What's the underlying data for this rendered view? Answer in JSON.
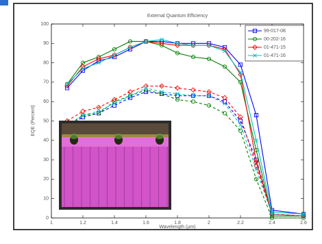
{
  "chart_data": {
    "type": "line",
    "title": "External Quantum Efficiency",
    "x_label": "Wavelength (µm)",
    "y_label": "EQE (Percent)",
    "x": [
      1.1,
      1.2,
      1.3,
      1.4,
      1.5,
      1.6,
      1.7,
      1.8,
      1.9,
      2.0,
      2.1,
      2.2,
      2.3,
      2.4,
      2.6
    ],
    "xlim": [
      1,
      2.6
    ],
    "xticks": [
      1,
      1.2,
      1.4,
      1.6,
      1.8,
      2,
      2.2,
      2.4,
      2.6
    ],
    "ylim": [
      0,
      100
    ],
    "yticks": [
      0,
      10,
      20,
      30,
      40,
      50,
      60,
      70,
      80,
      90,
      100
    ],
    "legend": "upper right",
    "series": [
      {
        "name": "99-017-08",
        "color": "#0000ff",
        "marker": "square",
        "values": [
          67,
          76,
          81,
          83,
          87,
          91,
          91,
          90,
          90,
          90,
          88,
          79,
          53,
          4,
          2
        ],
        "dashed_values": [
          47,
          52,
          54,
          58,
          62,
          65,
          64,
          63,
          63,
          63,
          60,
          50,
          30,
          2,
          1
        ]
      },
      {
        "name": "00-202-16",
        "color": "#008000",
        "marker": "circle",
        "values": [
          69,
          80,
          83,
          87,
          91,
          91,
          89,
          85,
          83,
          82,
          78,
          70,
          35,
          1,
          1
        ],
        "dashed_values": [
          47,
          53,
          54,
          60,
          63,
          66,
          64,
          61,
          60,
          58,
          54,
          45,
          20,
          0,
          0
        ]
      },
      {
        "name": "01-471-15",
        "color": "#ff0000",
        "marker": "diamond",
        "values": [
          68,
          78,
          82,
          84,
          88,
          91,
          90,
          89,
          89,
          89,
          87,
          74,
          29,
          2,
          1
        ],
        "dashed_values": [
          50,
          55,
          57,
          61,
          65,
          68,
          68,
          67,
          66,
          65,
          62,
          52,
          27,
          2,
          1
        ]
      },
      {
        "name": "01-471-16",
        "color": "#00bfbf",
        "marker": "x",
        "values": [
          69,
          77,
          80,
          84,
          88,
          91,
          92,
          90,
          89,
          89,
          86,
          75,
          40,
          3,
          2
        ],
        "dashed_values": [
          48,
          53,
          55,
          59,
          63,
          67,
          65,
          64,
          63,
          63,
          59,
          48,
          25,
          2,
          1
        ]
      }
    ]
  }
}
